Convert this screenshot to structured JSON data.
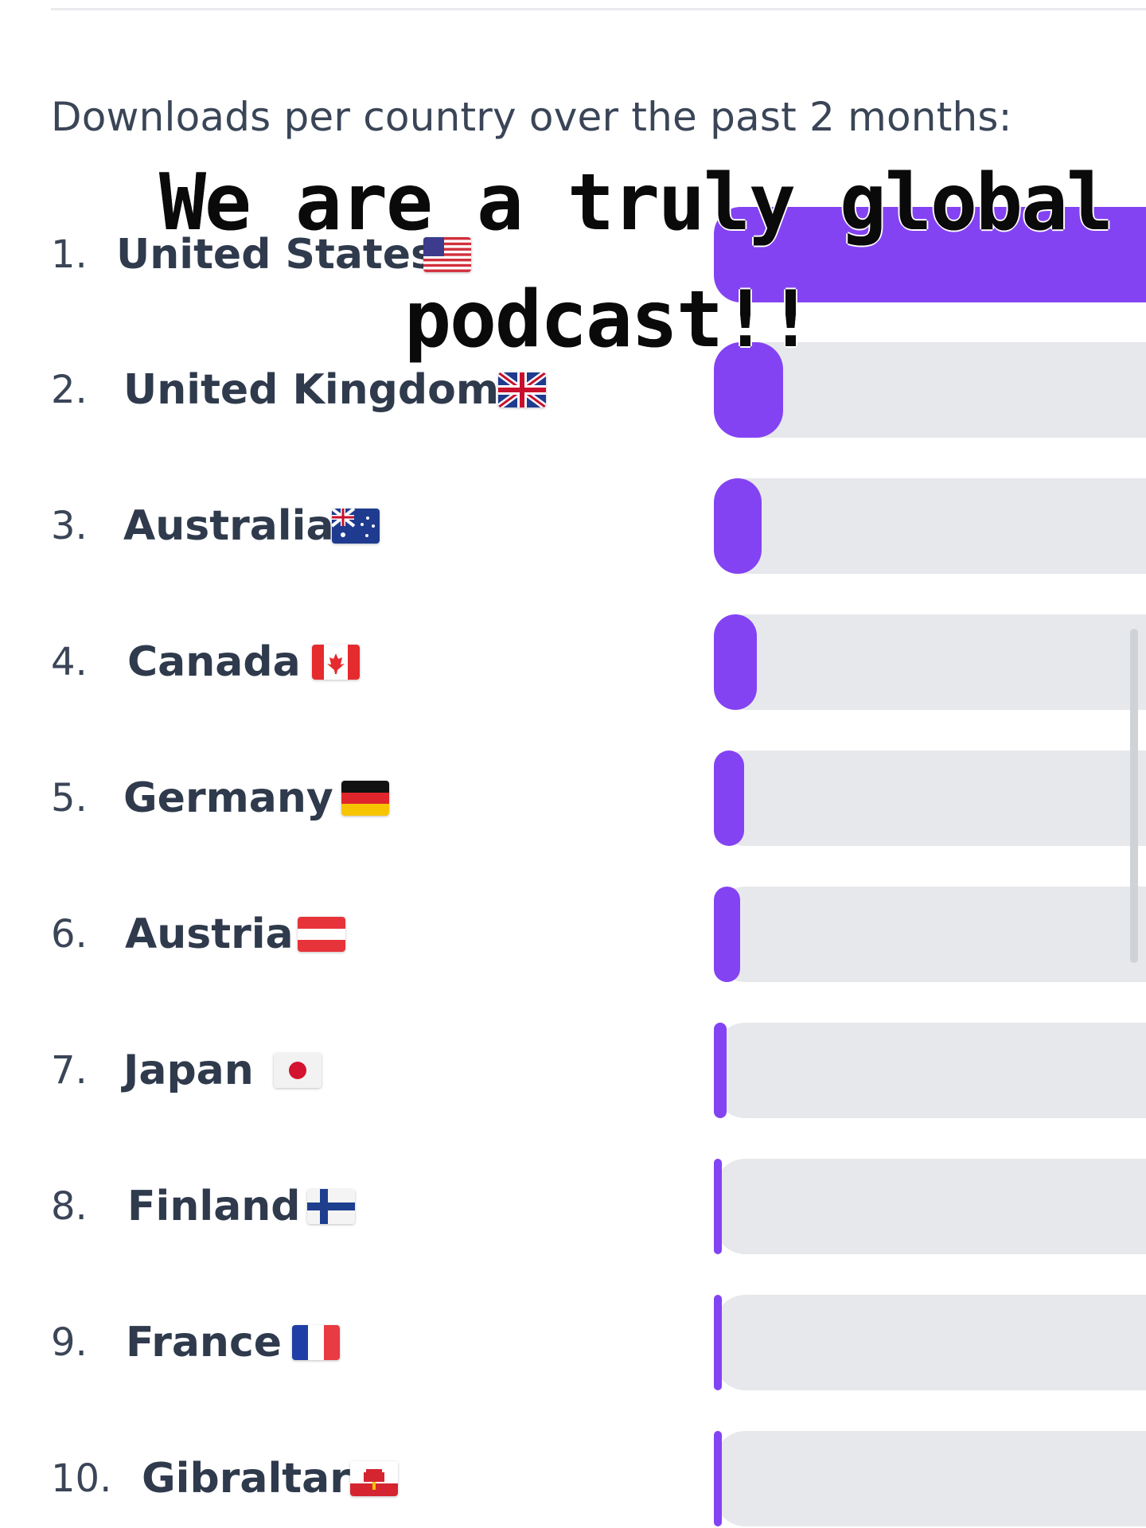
{
  "heading": "Downloads per country over the past 2 months:",
  "overlay": {
    "line1": "We are a truly global",
    "line2": "podcast!!"
  },
  "bar_color": "#8443f2",
  "track_color": "#e6e8ec",
  "chart_data": {
    "type": "bar",
    "orientation": "horizontal",
    "categories": [
      "United States",
      "United Kingdom",
      "Australia",
      "Canada",
      "Germany",
      "Austria",
      "Japan",
      "Finland",
      "France",
      "Gibraltar"
    ],
    "values": [
      100,
      16,
      11,
      10,
      7,
      6,
      3,
      1,
      1,
      1
    ],
    "value_unit": "relative share of downloads (estimated, % of top country)",
    "title": "Downloads per country over the past 2 months:",
    "xlabel": "",
    "ylabel": ""
  },
  "rows": [
    {
      "rank": "1.",
      "country": "United States",
      "flag": "us-flag-icon"
    },
    {
      "rank": "2.",
      "country": "United Kingdom",
      "flag": "uk-flag-icon"
    },
    {
      "rank": "3.",
      "country": "Australia",
      "flag": "au-flag-icon"
    },
    {
      "rank": "4.",
      "country": "Canada",
      "flag": "ca-flag-icon"
    },
    {
      "rank": "5.",
      "country": "Germany",
      "flag": "de-flag-icon"
    },
    {
      "rank": "6.",
      "country": "Austria",
      "flag": "at-flag-icon"
    },
    {
      "rank": "7.",
      "country": "Japan",
      "flag": "jp-flag-icon"
    },
    {
      "rank": "8.",
      "country": "Finland",
      "flag": "fi-flag-icon"
    },
    {
      "rank": "9.",
      "country": "France",
      "flag": "fr-flag-icon"
    },
    {
      "rank": "10.",
      "country": "Gibraltar",
      "flag": "gi-flag-icon"
    }
  ]
}
